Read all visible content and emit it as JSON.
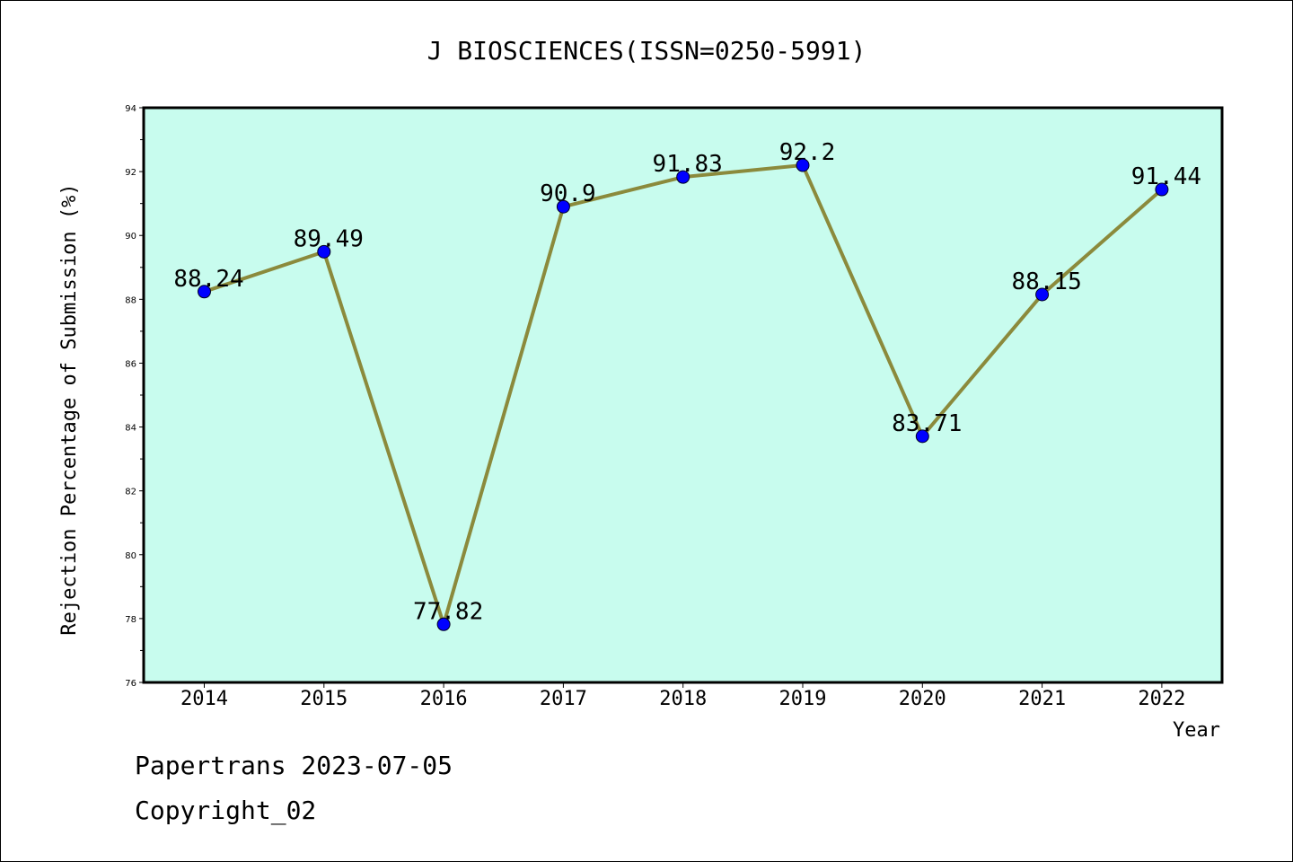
{
  "footer": {
    "line1": "Papertrans 2023-07-05",
    "line2": "Copyright_02"
  },
  "colors": {
    "plot_background": "#c8fcee",
    "line": "#8b8a3c",
    "marker": "#0000ff"
  },
  "chart_data": {
    "type": "line",
    "title": "J BIOSCIENCES(ISSN=0250-5991)",
    "xlabel": "Year",
    "ylabel": "Rejection Percentage of Submission (%)",
    "categories": [
      "2014",
      "2015",
      "2016",
      "2017",
      "2018",
      "2019",
      "2020",
      "2021",
      "2022"
    ],
    "series": [
      {
        "values": [
          88.24,
          89.49,
          77.82,
          90.9,
          91.83,
          92.2,
          83.71,
          88.15,
          91.44
        ],
        "labels": [
          "88.24",
          "89.49",
          "77.82",
          "90.9",
          "91.83",
          "92.2",
          "83.71",
          "88.15",
          "91.44"
        ]
      }
    ],
    "ylim": [
      76,
      94
    ],
    "yticks": [
      76,
      78,
      80,
      82,
      84,
      86,
      88,
      90,
      92,
      94
    ],
    "grid": false,
    "legend": "none"
  }
}
